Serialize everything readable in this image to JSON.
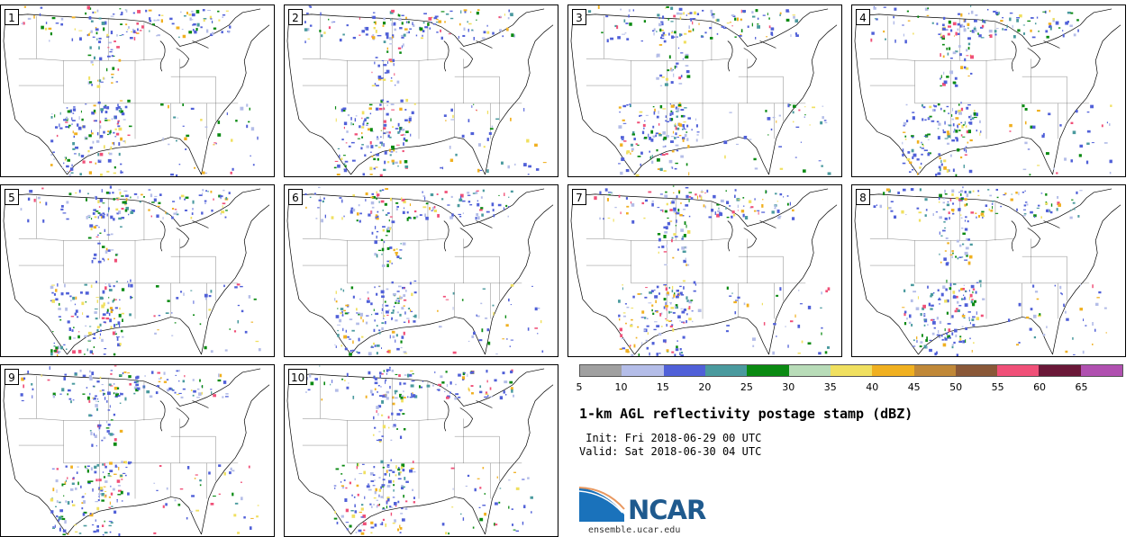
{
  "panels": [
    {
      "label": "1"
    },
    {
      "label": "2"
    },
    {
      "label": "3"
    },
    {
      "label": "4"
    },
    {
      "label": "5"
    },
    {
      "label": "6"
    },
    {
      "label": "7"
    },
    {
      "label": "8"
    },
    {
      "label": "9"
    },
    {
      "label": "10"
    }
  ],
  "colorbar": {
    "ticks": [
      "5",
      "10",
      "15",
      "20",
      "25",
      "30",
      "35",
      "40",
      "45",
      "50",
      "55",
      "60",
      "65"
    ],
    "colors": [
      "#a0a0a0",
      "#b4bde8",
      "#5060d8",
      "#4a9a9e",
      "#0a8a12",
      "#b8dcb8",
      "#f0e060",
      "#f0b020",
      "#c08838",
      "#8a5838",
      "#f05078",
      "#6a1838",
      "#b050b0"
    ]
  },
  "title": "1-km AGL reflectivity postage stamp (dBZ)",
  "init_line": " Init: Fri 2018-06-29 00 UTC",
  "valid_line": "Valid: Sat 2018-06-30 04 UTC",
  "logo": {
    "text": "NCAR",
    "site": "ensemble.ucar.edu"
  }
}
